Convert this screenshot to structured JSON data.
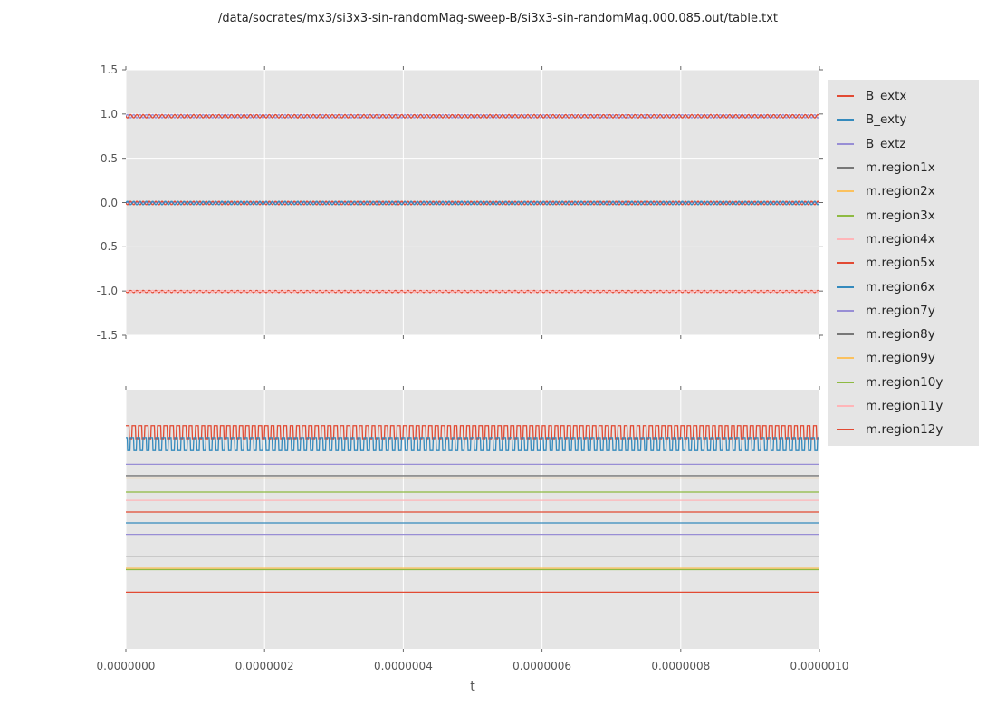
{
  "figure": {
    "title": "/data/socrates/mx3/si3x3-sin-randomMag-sweep-B/si3x3-sin-randomMag.000.085.out/table.txt",
    "background": "#ffffff",
    "axes_background": "#e5e5e5",
    "grid_color": "#ffffff",
    "tick_color": "#666666",
    "tick_label_color": "#555555"
  },
  "palette": {
    "red": "#E24A33",
    "blue": "#348ABD",
    "purple": "#988ED5",
    "gray": "#777777",
    "orange": "#FBC15E",
    "green": "#8EBA42",
    "pink": "#FFB5B8"
  },
  "legend": {
    "entries": [
      {
        "label": "B_extx",
        "color": "#E24A33"
      },
      {
        "label": "B_exty",
        "color": "#348ABD"
      },
      {
        "label": "B_extz",
        "color": "#988ED5"
      },
      {
        "label": "m.region1x",
        "color": "#777777"
      },
      {
        "label": "m.region2x",
        "color": "#FBC15E"
      },
      {
        "label": "m.region3x",
        "color": "#8EBA42"
      },
      {
        "label": "m.region4x",
        "color": "#FFB5B8"
      },
      {
        "label": "m.region5x",
        "color": "#E24A33"
      },
      {
        "label": "m.region6x",
        "color": "#348ABD"
      },
      {
        "label": "m.region7y",
        "color": "#988ED5"
      },
      {
        "label": "m.region8y",
        "color": "#777777"
      },
      {
        "label": "m.region9y",
        "color": "#FBC15E"
      },
      {
        "label": "m.region10y",
        "color": "#8EBA42"
      },
      {
        "label": "m.region11y",
        "color": "#FFB5B8"
      },
      {
        "label": "m.region12y",
        "color": "#E24A33"
      }
    ]
  },
  "chart_data": [
    {
      "id": "top",
      "type": "line",
      "x_range": [
        0.0,
        1e-06
      ],
      "x_ticks": [
        "0.0000000",
        "0.0000002",
        "0.0000004",
        "0.0000006",
        "0.0000008",
        "0.0000010"
      ],
      "xlabel": "",
      "y_range": [
        -1.5,
        1.5
      ],
      "y_ticks": [
        "1.5",
        "1.0",
        "0.5",
        "0.0",
        "-0.5",
        "-1.0",
        "-1.5"
      ],
      "grid_x": true,
      "grid_y": true,
      "series": [
        {
          "name": "purple-ripple-near-1",
          "color": "#988ED5",
          "waveform": "sine",
          "mean": 0.975,
          "amplitude": 0.02,
          "cycles": 110,
          "phase": 0.0
        },
        {
          "name": "B_extx-red-near-1",
          "color": "#E24A33",
          "waveform": "sine",
          "mean": 0.975,
          "amplitude": 0.02,
          "cycles": 110,
          "phase": 0.5
        },
        {
          "name": "B_extz-purple-at-0",
          "color": "#988ED5",
          "waveform": "flat",
          "value": 0.0
        },
        {
          "name": "red-ripple-at-0",
          "color": "#E24A33",
          "waveform": "sine",
          "mean": -0.005,
          "amplitude": 0.02,
          "cycles": 110,
          "phase": 0.5
        },
        {
          "name": "B_exty-blue-at-0",
          "color": "#348ABD",
          "waveform": "sine",
          "mean": -0.005,
          "amplitude": 0.02,
          "cycles": 110,
          "phase": 0.0
        },
        {
          "name": "red-ripple-at-neg1",
          "color": "#E24A33",
          "waveform": "sine",
          "mean": -1.005,
          "amplitude": 0.013,
          "cycles": 110,
          "phase": 0.5
        },
        {
          "name": "pink-line-at-neg1",
          "color": "#FFB5B8",
          "waveform": "sine",
          "mean": -1.005,
          "amplitude": 0.013,
          "cycles": 110,
          "phase": 0.0
        }
      ]
    },
    {
      "id": "bottom",
      "type": "line",
      "x_range": [
        0.0,
        1e-06
      ],
      "x_ticks": [
        "0.0000000",
        "0.0000002",
        "0.0000004",
        "0.0000006",
        "0.0000008",
        "0.0000010"
      ],
      "xlabel": "t",
      "y_range": [
        0,
        1
      ],
      "y_ticks": [],
      "y_axis_note": "no tick labels shown",
      "grid_x": true,
      "grid_y": false,
      "series": [
        {
          "name": "square-wave-red",
          "color": "#E24A33",
          "waveform": "square",
          "mean": 0.836,
          "amplitude": 0.025,
          "cycles": 110,
          "phase": 0.0,
          "duty": 0.55
        },
        {
          "name": "square-wave-blue",
          "color": "#348ABD",
          "waveform": "square",
          "mean": 0.79,
          "amplitude": 0.025,
          "cycles": 110,
          "phase": 0.3,
          "duty": 0.55
        },
        {
          "name": "flat-purple-1",
          "color": "#988ED5",
          "waveform": "flat",
          "value": 0.712
        },
        {
          "name": "flat-gray-1",
          "color": "#777777",
          "waveform": "flat",
          "value": 0.668
        },
        {
          "name": "flat-orange-1",
          "color": "#FBC15E",
          "waveform": "flat",
          "value": 0.659
        },
        {
          "name": "flat-green-1",
          "color": "#8EBA42",
          "waveform": "flat",
          "value": 0.605
        },
        {
          "name": "flat-pink-1",
          "color": "#FFB5B8",
          "waveform": "flat",
          "value": 0.573
        },
        {
          "name": "flat-red-1",
          "color": "#E24A33",
          "waveform": "flat",
          "value": 0.528
        },
        {
          "name": "flat-blue-1",
          "color": "#348ABD",
          "waveform": "flat",
          "value": 0.486
        },
        {
          "name": "flat-purple-2",
          "color": "#988ED5",
          "waveform": "flat",
          "value": 0.442
        },
        {
          "name": "flat-gray-2",
          "color": "#777777",
          "waveform": "flat",
          "value": 0.358
        },
        {
          "name": "flat-orange-2",
          "color": "#FBC15E",
          "waveform": "flat",
          "value": 0.311
        },
        {
          "name": "flat-green-2",
          "color": "#8EBA42",
          "waveform": "flat",
          "value": 0.306
        },
        {
          "name": "flat-red-2",
          "color": "#E24A33",
          "waveform": "flat",
          "value": 0.219
        }
      ]
    }
  ]
}
